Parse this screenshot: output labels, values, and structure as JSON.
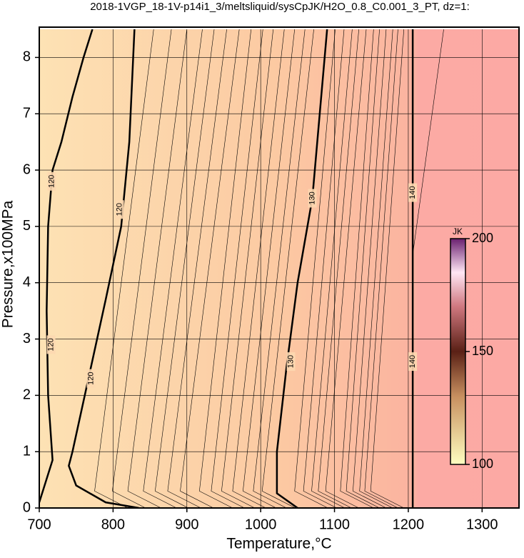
{
  "chart_data": {
    "type": "contour",
    "title": "2018-1VGP_18-1V-p14i1_3/meltsliquid/sysCpJK/H2O_0.8_C0.001_3_PT, dz=1:",
    "x_label": "Temperature,°C",
    "y_label": "Pressure,x100MPa",
    "xlim": [
      700,
      1350
    ],
    "ylim": [
      0,
      8.5
    ],
    "xticks": [
      700,
      800,
      900,
      1000,
      1100,
      1200,
      1300
    ],
    "yticks": [
      0,
      1,
      2,
      3,
      4,
      5,
      6,
      7,
      8
    ],
    "grid": true,
    "contours": [
      {
        "level": 120,
        "x": [
          700,
          718,
          712,
          710,
          712,
          718,
          730,
          745,
          760,
          772
        ],
        "y": [
          0.1,
          0.85,
          2,
          3.5,
          5,
          6,
          6.5,
          7.3,
          8,
          8.5
        ]
      },
      {
        "level": 120,
        "x": [
          835,
          790,
          750,
          740,
          745,
          770,
          790,
          811,
          822,
          829
        ],
        "y": [
          0,
          0.1,
          0.4,
          0.75,
          1,
          2.5,
          3.7,
          5,
          6.5,
          8.5
        ]
      },
      {
        "level": 130,
        "x": [
          1050,
          1022,
          1022,
          1035,
          1050,
          1070,
          1090
        ],
        "y": [
          0,
          0.26,
          1,
          2.5,
          4,
          5.5,
          8.5
        ]
      },
      {
        "level": 140,
        "x": [
          1206,
          1206
        ],
        "y": [
          0,
          8.5
        ]
      }
    ],
    "minor_contours": [
      {
        "x": [
          820,
          775,
          855
        ],
        "y": [
          0,
          0.3,
          8.5
        ]
      },
      {
        "x": [
          844,
          799,
          879
        ],
        "y": [
          0,
          0.3,
          8.5
        ]
      },
      {
        "x": [
          865,
          820,
          900
        ],
        "y": [
          0,
          0.3,
          8.5
        ]
      },
      {
        "x": [
          886,
          841,
          921
        ],
        "y": [
          0,
          0.3,
          8.5
        ]
      },
      {
        "x": [
          902,
          857,
          937
        ],
        "y": [
          0,
          0.3,
          8.5
        ]
      },
      {
        "x": [
          919,
          874,
          954
        ],
        "y": [
          0,
          0.3,
          8.5
        ]
      },
      {
        "x": [
          936,
          891,
          971
        ],
        "y": [
          0,
          0.3,
          8.5
        ]
      },
      {
        "x": [
          962,
          917,
          987
        ],
        "y": [
          0,
          0.3,
          8.5
        ]
      },
      {
        "x": [
          978,
          933,
          1003
        ],
        "y": [
          0,
          0.3,
          8.5
        ]
      },
      {
        "x": [
          992,
          947,
          1017
        ],
        "y": [
          0,
          0.3,
          8.5
        ]
      },
      {
        "x": [
          1007,
          962,
          1032
        ],
        "y": [
          0,
          0.3,
          8.5
        ]
      },
      {
        "x": [
          1021,
          976,
          1046
        ],
        "y": [
          0,
          0.3,
          8.5
        ]
      },
      {
        "x": [
          1035,
          990,
          1060
        ],
        "y": [
          0,
          0.3,
          8.5
        ]
      },
      {
        "x": [
          1047,
          1002,
          1072
        ],
        "y": [
          0,
          0.3,
          8.5
        ]
      },
      {
        "x": [
          1091,
          1046,
          1101
        ],
        "y": [
          0,
          0.3,
          8.5
        ]
      },
      {
        "x": [
          1103,
          1058,
          1113
        ],
        "y": [
          0,
          0.3,
          8.5
        ]
      },
      {
        "x": [
          1114,
          1069,
          1124
        ],
        "y": [
          0,
          0.3,
          8.5
        ]
      },
      {
        "x": [
          1123,
          1078,
          1133
        ],
        "y": [
          0,
          0.3,
          8.5
        ]
      },
      {
        "x": [
          1133,
          1088,
          1143
        ],
        "y": [
          0,
          0.3,
          8.5
        ]
      },
      {
        "x": [
          1153,
          1108,
          1153
        ],
        "y": [
          0,
          0.3,
          8.5
        ]
      },
      {
        "x": [
          1161,
          1116,
          1161
        ],
        "y": [
          0,
          0.3,
          8.5
        ]
      },
      {
        "x": [
          1170,
          1125,
          1170
        ],
        "y": [
          0,
          0.3,
          8.5
        ]
      },
      {
        "x": [
          1179,
          1134,
          1179
        ],
        "y": [
          0,
          0.3,
          8.5
        ]
      },
      {
        "x": [
          1186,
          1141,
          1186
        ],
        "y": [
          0,
          0.3,
          8.5
        ]
      },
      {
        "x": [
          1194,
          1149,
          1194
        ],
        "y": [
          0,
          0.3,
          8.5
        ]
      },
      {
        "x": [
          1206,
          1248
        ],
        "y": [
          4.5,
          8.5
        ]
      }
    ],
    "contour_labels": [
      {
        "x": 717,
        "y": 5.8,
        "level": 120
      },
      {
        "x": 716,
        "y": 2.9,
        "level": 120
      },
      {
        "x": 809,
        "y": 5.3,
        "level": 120
      },
      {
        "x": 770,
        "y": 2.3,
        "level": 120
      },
      {
        "x": 1070,
        "y": 5.5,
        "level": 130
      },
      {
        "x": 1041,
        "y": 2.6,
        "level": 130
      },
      {
        "x": 1206,
        "y": 5.6,
        "level": 140
      },
      {
        "x": 1206,
        "y": 2.6,
        "level": 140
      }
    ],
    "colorbar": {
      "label": "JK",
      "lim": [
        100,
        200
      ],
      "ticks": [
        100,
        150,
        200
      ]
    }
  }
}
